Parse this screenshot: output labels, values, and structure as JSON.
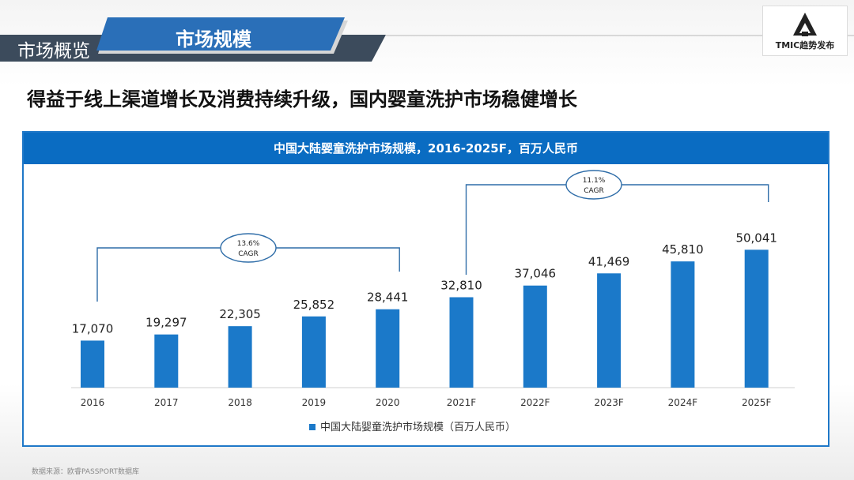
{
  "header": {
    "section_label": "市场概览",
    "tab_title": "市场规模",
    "logo_text": "TMIC趋势发布",
    "logo_icon": "triangle-logo-icon"
  },
  "headline": "得益于线上渠道增长及消费持续升级，国内婴童洗护市场稳健增长",
  "colors": {
    "bar": "#1b79c9",
    "panel_header": "#0a6cc2",
    "header_band": "#3c4b5c",
    "tab": "#2a6fb8",
    "bracket": "#2f6da8"
  },
  "chart_data": {
    "type": "bar",
    "title": "中国大陆婴童洗护市场规模，2016-2025F，百万人民币",
    "categories": [
      "2016",
      "2017",
      "2018",
      "2019",
      "2020",
      "2021F",
      "2022F",
      "2023F",
      "2024F",
      "2025F"
    ],
    "series": [
      {
        "name": "中国大陆婴童洗护市场规模（百万人民币）",
        "values": [
          17070,
          19297,
          22305,
          25852,
          28441,
          32810,
          37046,
          41469,
          45810,
          50041
        ],
        "labels": [
          "17,070",
          "19,297",
          "22,305",
          "25,852",
          "28,441",
          "32,810",
          "37,046",
          "41,469",
          "45,810",
          "50,041"
        ]
      }
    ],
    "legend_position": "bottom",
    "grid": false,
    "annotations": [
      {
        "from": "2016",
        "to": "2020",
        "rate": "13.6%",
        "label": "CAGR"
      },
      {
        "from": "2021F",
        "to": "2025F",
        "rate": "11.1%",
        "label": "CAGR"
      }
    ]
  },
  "source_note": "数据来源：欧睿PASSPORT数据库"
}
